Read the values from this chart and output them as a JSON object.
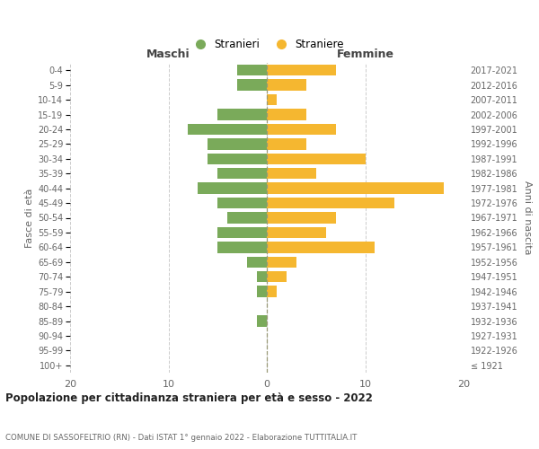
{
  "age_groups": [
    "100+",
    "95-99",
    "90-94",
    "85-89",
    "80-84",
    "75-79",
    "70-74",
    "65-69",
    "60-64",
    "55-59",
    "50-54",
    "45-49",
    "40-44",
    "35-39",
    "30-34",
    "25-29",
    "20-24",
    "15-19",
    "10-14",
    "5-9",
    "0-4"
  ],
  "birth_years": [
    "≤ 1921",
    "1922-1926",
    "1927-1931",
    "1932-1936",
    "1937-1941",
    "1942-1946",
    "1947-1951",
    "1952-1956",
    "1957-1961",
    "1962-1966",
    "1967-1971",
    "1972-1976",
    "1977-1981",
    "1982-1986",
    "1987-1991",
    "1992-1996",
    "1997-2001",
    "2002-2006",
    "2007-2011",
    "2012-2016",
    "2017-2021"
  ],
  "maschi": [
    0,
    0,
    0,
    1,
    0,
    1,
    1,
    2,
    5,
    5,
    4,
    5,
    7,
    5,
    6,
    6,
    8,
    5,
    0,
    3,
    3
  ],
  "femmine": [
    0,
    0,
    0,
    0,
    0,
    1,
    2,
    3,
    11,
    6,
    7,
    13,
    18,
    5,
    10,
    4,
    7,
    4,
    1,
    4,
    7
  ],
  "color_maschi": "#7aaa5a",
  "color_femmine": "#f5b730",
  "title_main": "Popolazione per cittadinanza straniera per età e sesso - 2022",
  "title_sub": "COMUNE DI SASSOFELTRIO (RN) - Dati ISTAT 1° gennaio 2022 - Elaborazione TUTTITALIA.IT",
  "legend_maschi": "Stranieri",
  "legend_femmine": "Straniere",
  "xlabel_left": "Maschi",
  "xlabel_right": "Femmine",
  "ylabel_left": "Fasce di età",
  "ylabel_right": "Anni di nascita",
  "xlim": 20,
  "background_color": "#ffffff",
  "grid_color": "#cccccc"
}
